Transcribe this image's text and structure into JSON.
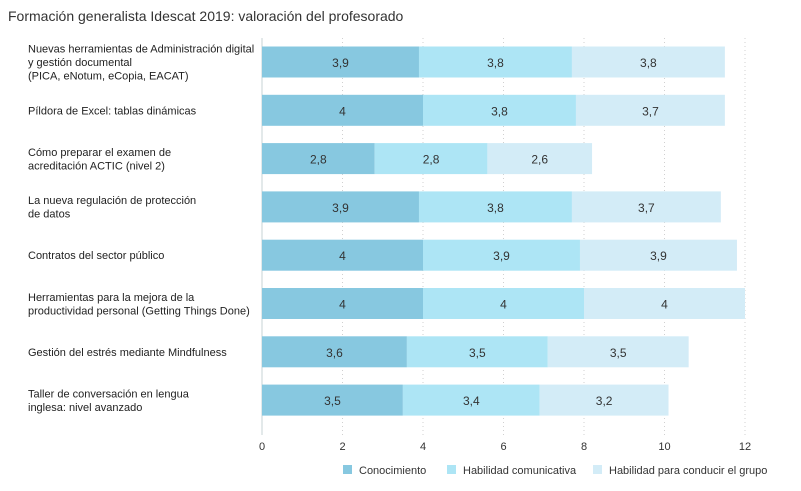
{
  "chart_data": {
    "type": "bar",
    "orientation": "horizontal",
    "stacked": true,
    "title": "Formación generalista Idescat 2019: valoración del profesorado",
    "categories": [
      [
        "Nuevas herramientas de Administración digital",
        "y gestión documental",
        "(PICA, eNotum, eCopia, EACAT)"
      ],
      [
        "Píldora de Excel: tablas dinámicas"
      ],
      [
        "Cómo preparar el examen de",
        "acreditación ACTIC (nivel 2)"
      ],
      [
        "La nueva regulación de protección",
        "de datos"
      ],
      [
        "Contratos del sector público"
      ],
      [
        "Herramientas para la mejora de la",
        "productividad personal (Getting Things Done)"
      ],
      [
        "Gestión del estrés mediante Mindfulness"
      ],
      [
        "Taller de conversación en lengua",
        " inglesa: nivel avanzado"
      ]
    ],
    "series": [
      {
        "name": "Conocimiento",
        "color": "#87c8e0",
        "values": [
          3.9,
          4,
          2.8,
          3.9,
          4,
          4,
          3.6,
          3.5
        ],
        "labels": [
          "3,9",
          "4",
          "2,8",
          "3,9",
          "4",
          "4",
          "3,6",
          "3,5"
        ]
      },
      {
        "name": "Habilidad comunicativa",
        "color": "#ade5f5",
        "values": [
          3.8,
          3.8,
          2.8,
          3.8,
          3.9,
          4,
          3.5,
          3.4
        ],
        "labels": [
          "3,8",
          "3,8",
          "2,8",
          "3,8",
          "3,9",
          "4",
          "3,5",
          "3,4"
        ]
      },
      {
        "name": "Habilidad para conducir el grupo",
        "color": "#d3ecf7",
        "values": [
          3.8,
          3.7,
          2.6,
          3.7,
          3.9,
          4,
          3.5,
          3.2
        ],
        "labels": [
          "3,8",
          "3,7",
          "2,6",
          "3,7",
          "3,9",
          "4",
          "3,5",
          "3,2"
        ]
      }
    ],
    "xlim": [
      0,
      12
    ],
    "xticks": [
      "0",
      "2",
      "4",
      "6",
      "8",
      "10",
      "12"
    ],
    "grid": true,
    "legend": "bottom-right"
  }
}
